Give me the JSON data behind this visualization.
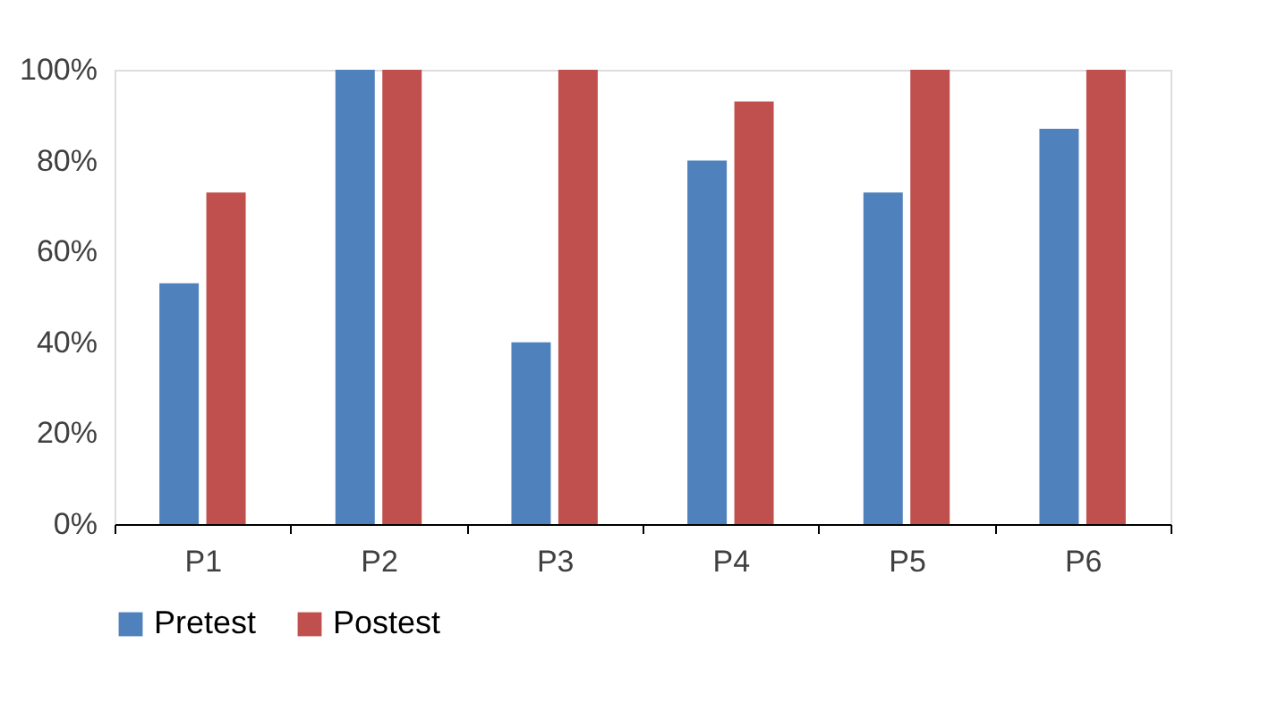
{
  "chart_data": {
    "type": "bar",
    "categories": [
      "P1",
      "P2",
      "P3",
      "P4",
      "P5",
      "P6"
    ],
    "series": [
      {
        "name": "Pretest",
        "color": "#4f81bd",
        "values": [
          53,
          100,
          40,
          80,
          73,
          87
        ]
      },
      {
        "name": "Postest",
        "color": "#c0504d",
        "values": [
          73,
          100,
          100,
          93,
          100,
          100
        ]
      }
    ],
    "ylim": [
      0,
      100
    ],
    "yticks": [
      {
        "value": 0,
        "label": "0%"
      },
      {
        "value": 20,
        "label": "20%"
      },
      {
        "value": 40,
        "label": "40%"
      },
      {
        "value": 60,
        "label": "60%"
      },
      {
        "value": 80,
        "label": "80%"
      },
      {
        "value": 100,
        "label": "100%"
      }
    ],
    "grid": false,
    "legend": "bottom"
  }
}
